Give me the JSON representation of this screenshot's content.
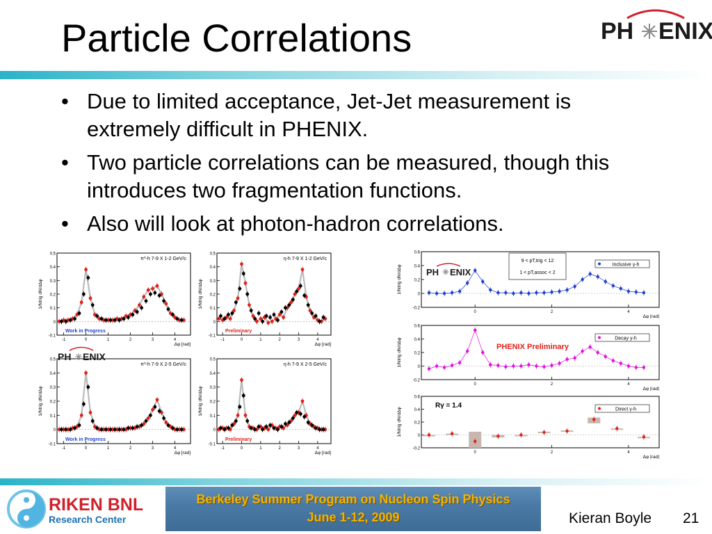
{
  "slide": {
    "title": "Particle Correlations",
    "bullets": [
      "Due to limited acceptance, Jet-Jet measurement is extremely difficult in PHENIX.",
      "Two particle correlations can be measured, though this introduces two fragmentation functions.",
      "Also will look at photon-hadron correlations."
    ],
    "bullet_symbol": "•"
  },
  "logos": {
    "phenix": "PH ENIX",
    "riken_line1": "RIKEN BNL",
    "riken_line2": "Research Center"
  },
  "footer": {
    "banner_line1": "Berkeley Summer Program on Nucleon Spin Physics",
    "banner_line2": "June 1-12, 2009",
    "author": "Kieran Boyle",
    "page": "21"
  },
  "colors": {
    "rule": "#2ab3c8",
    "phenix_red": "#d0202a",
    "banner_text": "#f1b400"
  },
  "chart_data": [
    {
      "type": "scatter",
      "panel": "pi0-h 7-9 X 1-2",
      "legend": "π⁰-h 7-9 X 1-2 GeV/c",
      "ylabel": "1/Ntrig dN/dΔφ",
      "xlabel": "Δφ [rad]",
      "xlim": [
        -1.3,
        4.7
      ],
      "ylim": [
        -0.1,
        0.5
      ],
      "xticks": [
        "-1",
        "0",
        "1",
        "2",
        "3",
        "4"
      ],
      "yticks": [
        "-0.1",
        "0",
        "0.1",
        "0.2",
        "0.3",
        "0.4",
        "0.5"
      ],
      "tag": "Work in Progress",
      "tag_color": "#1d3fd0",
      "series": [
        {
          "color": "#e0201a",
          "x": [
            -1.2,
            -1.0,
            -0.8,
            -0.6,
            -0.4,
            -0.2,
            0,
            0.2,
            0.4,
            0.6,
            0.8,
            1.0,
            1.2,
            1.4,
            1.6,
            1.8,
            2.0,
            2.2,
            2.4,
            2.6,
            2.8,
            3.0,
            3.2,
            3.4,
            3.6,
            3.8,
            4.0,
            4.2,
            4.4
          ],
          "y": [
            0.0,
            0.01,
            0.01,
            0.02,
            0.05,
            0.14,
            0.38,
            0.17,
            0.05,
            0.02,
            0.01,
            0.01,
            0.01,
            0.02,
            0.02,
            0.04,
            0.05,
            0.08,
            0.12,
            0.18,
            0.23,
            0.24,
            0.26,
            0.2,
            0.13,
            0.06,
            0.03,
            0.01,
            0.01
          ]
        },
        {
          "color": "#000000",
          "x": [
            -1.1,
            -0.9,
            -0.7,
            -0.5,
            -0.3,
            -0.1,
            0.1,
            0.3,
            0.5,
            0.7,
            0.9,
            1.1,
            1.3,
            1.5,
            1.7,
            1.9,
            2.1,
            2.3,
            2.5,
            2.7,
            2.9,
            3.1,
            3.3,
            3.5,
            3.7,
            3.9,
            4.1,
            4.3
          ],
          "y": [
            0.0,
            0.0,
            0.01,
            0.02,
            0.06,
            0.2,
            0.32,
            0.12,
            0.04,
            0.02,
            0.01,
            0.01,
            0.01,
            0.01,
            0.02,
            0.03,
            0.05,
            0.07,
            0.1,
            0.15,
            0.2,
            0.21,
            0.19,
            0.15,
            0.09,
            0.05,
            0.02,
            0.01
          ]
        }
      ]
    },
    {
      "type": "scatter",
      "panel": "eta-h 7-9 X 1-2",
      "legend": "η-h 7-9 X 1-2 GeV/c",
      "ylabel": "1/Ntrig dN/dΔφ",
      "xlabel": "Δφ [rad]",
      "xlim": [
        -1.3,
        4.7
      ],
      "ylim": [
        -0.1,
        0.5
      ],
      "xticks": [
        "-1",
        "0",
        "1",
        "2",
        "3",
        "4"
      ],
      "yticks": [
        "-0.1",
        "0",
        "0.1",
        "0.2",
        "0.3",
        "0.4",
        "0.5"
      ],
      "tag": "Preliminary",
      "tag_color": "#e0201a",
      "series": [
        {
          "color": "#e0201a",
          "x": [
            -1.2,
            -1.0,
            -0.8,
            -0.6,
            -0.4,
            -0.2,
            0,
            0.2,
            0.4,
            0.6,
            0.8,
            1.0,
            1.2,
            1.4,
            1.6,
            1.8,
            2.0,
            2.2,
            2.4,
            2.6,
            2.8,
            3.0,
            3.2,
            3.4,
            3.6,
            3.8,
            4.0,
            4.2,
            4.4
          ],
          "y": [
            0.02,
            0.01,
            0.03,
            0.02,
            0.08,
            0.17,
            0.42,
            0.28,
            0.12,
            0.04,
            0.0,
            0.02,
            0.03,
            -0.01,
            0.0,
            0.02,
            0.05,
            0.03,
            0.1,
            0.14,
            0.2,
            0.24,
            0.38,
            0.18,
            0.08,
            0.03,
            0.01,
            0.0,
            0.02
          ]
        },
        {
          "color": "#000000",
          "x": [
            -1.1,
            -0.9,
            -0.7,
            -0.5,
            -0.3,
            -0.1,
            0.1,
            0.3,
            0.5,
            0.7,
            0.9,
            1.1,
            1.3,
            1.5,
            1.7,
            1.9,
            2.1,
            2.3,
            2.5,
            2.7,
            2.9,
            3.1,
            3.3,
            3.5,
            3.7,
            3.9,
            4.1,
            4.3
          ],
          "y": [
            0.04,
            0.02,
            0.05,
            0.06,
            0.14,
            0.24,
            0.35,
            0.2,
            0.08,
            0.02,
            0.06,
            0.0,
            0.04,
            0.03,
            0.05,
            0.01,
            0.07,
            0.1,
            0.12,
            0.16,
            0.22,
            0.26,
            0.19,
            0.12,
            0.06,
            0.04,
            0.0,
            0.03
          ]
        }
      ]
    },
    {
      "type": "scatter",
      "panel": "pi0-h 7-9 X 2-5",
      "legend": "π⁰-h 7-9 X 2-5 GeV/c",
      "ylabel": "1/Ntrig dN/dΔφ",
      "xlabel": "Δφ [rad]",
      "xlim": [
        -1.3,
        4.7
      ],
      "ylim": [
        -0.1,
        0.5
      ],
      "xticks": [
        "-1",
        "0",
        "1",
        "2",
        "3",
        "4"
      ],
      "yticks": [
        "-0.1",
        "0",
        "0.1",
        "0.2",
        "0.3",
        "0.4",
        "0.5"
      ],
      "tag": "Work in Progress",
      "tag_color": "#1d3fd0",
      "series": [
        {
          "color": "#e0201a",
          "x": [
            -1.2,
            -1.0,
            -0.8,
            -0.6,
            -0.4,
            -0.2,
            0,
            0.2,
            0.4,
            0.6,
            0.8,
            1.0,
            1.2,
            1.4,
            1.6,
            1.8,
            2.0,
            2.2,
            2.4,
            2.6,
            2.8,
            3.0,
            3.2,
            3.4,
            3.6,
            3.8,
            4.0,
            4.2,
            4.4
          ],
          "y": [
            0.0,
            0.0,
            0.0,
            0.01,
            0.02,
            0.1,
            0.4,
            0.12,
            0.02,
            0.0,
            0.0,
            0.0,
            0.0,
            0.0,
            0.0,
            0.0,
            0.01,
            0.01,
            0.02,
            0.04,
            0.08,
            0.14,
            0.21,
            0.12,
            0.05,
            0.02,
            0.0,
            0.0,
            0.0
          ]
        },
        {
          "color": "#000000",
          "x": [
            -1.1,
            -0.9,
            -0.7,
            -0.5,
            -0.3,
            -0.1,
            0.1,
            0.3,
            0.5,
            0.7,
            0.9,
            1.1,
            1.3,
            1.5,
            1.7,
            1.9,
            2.1,
            2.3,
            2.5,
            2.7,
            2.9,
            3.1,
            3.3,
            3.5,
            3.7,
            3.9,
            4.1,
            4.3
          ],
          "y": [
            0.0,
            0.0,
            0.0,
            0.01,
            0.03,
            0.18,
            0.3,
            0.06,
            0.01,
            0.0,
            0.0,
            0.0,
            0.0,
            0.0,
            0.0,
            0.01,
            0.01,
            0.02,
            0.03,
            0.06,
            0.1,
            0.16,
            0.13,
            0.08,
            0.03,
            0.01,
            0.0,
            0.0
          ]
        }
      ]
    },
    {
      "type": "scatter",
      "panel": "eta-h 7-9 X 2-5",
      "legend": "η-h 7-9 X 2-5 GeV/c",
      "ylabel": "1/Ntrig dN/dΔφ",
      "xlabel": "Δφ [rad]",
      "xlim": [
        -1.3,
        4.7
      ],
      "ylim": [
        -0.1,
        0.5
      ],
      "xticks": [
        "-1",
        "0",
        "1",
        "2",
        "3",
        "4"
      ],
      "yticks": [
        "-0.1",
        "0",
        "0.1",
        "0.2",
        "0.3",
        "0.4",
        "0.5"
      ],
      "tag": "Preliminary",
      "tag_color": "#e0201a",
      "series": [
        {
          "color": "#e0201a",
          "x": [
            -1.2,
            -1.0,
            -0.8,
            -0.6,
            -0.4,
            -0.2,
            0,
            0.2,
            0.4,
            0.6,
            0.8,
            1.0,
            1.2,
            1.4,
            1.6,
            1.8,
            2.0,
            2.2,
            2.4,
            2.6,
            2.8,
            3.0,
            3.2,
            3.4,
            3.6,
            3.8,
            4.0,
            4.2,
            4.4
          ],
          "y": [
            0.0,
            0.01,
            0.01,
            0.0,
            0.04,
            0.1,
            0.35,
            0.1,
            0.02,
            0.01,
            0.0,
            0.02,
            0.01,
            0.0,
            0.03,
            0.01,
            0.02,
            0.01,
            0.03,
            0.06,
            0.1,
            0.12,
            0.2,
            0.1,
            0.04,
            0.02,
            0.01,
            0.0,
            0.0
          ]
        },
        {
          "color": "#000000",
          "x": [
            -1.1,
            -0.9,
            -0.7,
            -0.5,
            -0.3,
            -0.1,
            0.1,
            0.3,
            0.5,
            0.7,
            0.9,
            1.1,
            1.3,
            1.5,
            1.7,
            1.9,
            2.1,
            2.3,
            2.5,
            2.7,
            2.9,
            3.1,
            3.3,
            3.5,
            3.7,
            3.9,
            4.1,
            4.3
          ],
          "y": [
            0.01,
            0.0,
            0.01,
            0.03,
            0.06,
            0.16,
            0.24,
            0.06,
            0.01,
            0.0,
            0.02,
            0.0,
            0.02,
            0.03,
            0.01,
            0.0,
            0.02,
            0.04,
            0.05,
            0.08,
            0.12,
            0.11,
            0.09,
            0.05,
            0.03,
            0.01,
            0.0,
            0.0
          ]
        }
      ]
    },
    {
      "type": "scatter",
      "panel": "Inclusive gamma-h",
      "legend": "Inclusive γ-h",
      "note": [
        "9 < pT,trig < 12",
        "1 < pT,assoc < 2"
      ],
      "ylabel": "1/Ntrig dN/dΔφ",
      "xlabel": "Δφ [rad]",
      "xlim": [
        -1.4,
        4.8
      ],
      "ylim": [
        -0.2,
        0.6
      ],
      "xticks": [
        "0",
        "2",
        "4"
      ],
      "yticks": [
        "-0.2",
        "0",
        "0.2",
        "0.4",
        "0.6"
      ],
      "series": [
        {
          "color": "#1d3fd0",
          "x": [
            -1.2,
            -1.0,
            -0.8,
            -0.6,
            -0.4,
            -0.2,
            0.0,
            0.2,
            0.4,
            0.6,
            0.8,
            1.0,
            1.2,
            1.4,
            1.6,
            1.8,
            2.0,
            2.2,
            2.4,
            2.6,
            2.8,
            3.0,
            3.2,
            3.4,
            3.6,
            3.8,
            4.0,
            4.2,
            4.4
          ],
          "y": [
            0.01,
            0.0,
            0.0,
            0.01,
            0.03,
            0.15,
            0.33,
            0.17,
            0.05,
            0.01,
            0.01,
            0.0,
            0.01,
            0.0,
            0.01,
            0.01,
            0.02,
            0.03,
            0.05,
            0.1,
            0.2,
            0.28,
            0.24,
            0.17,
            0.11,
            0.07,
            0.03,
            0.02,
            0.01
          ]
        }
      ]
    },
    {
      "type": "scatter",
      "panel": "Decay gamma-h",
      "legend": "Decay γ-h",
      "tag": "PHENIX Preliminary",
      "tag_color": "#e0201a",
      "ylabel": "1/Ntrig dN/dΔφ",
      "xlabel": "Δφ [rad]",
      "xlim": [
        -1.4,
        4.8
      ],
      "ylim": [
        -0.2,
        0.6
      ],
      "xticks": [
        "0",
        "2",
        "4"
      ],
      "yticks": [
        "-0.2",
        "0",
        "0.2",
        "0.4",
        "0.6"
      ],
      "series": [
        {
          "color": "#e010e0",
          "x": [
            -1.2,
            -1.0,
            -0.8,
            -0.6,
            -0.4,
            -0.2,
            0.0,
            0.2,
            0.4,
            0.6,
            0.8,
            1.0,
            1.2,
            1.4,
            1.6,
            1.8,
            2.0,
            2.2,
            2.4,
            2.6,
            2.8,
            3.0,
            3.2,
            3.4,
            3.6,
            3.8,
            4.0,
            4.2,
            4.4
          ],
          "y": [
            -0.04,
            0.0,
            -0.02,
            0.01,
            0.05,
            0.22,
            0.53,
            0.2,
            0.02,
            0.01,
            -0.01,
            0.0,
            0.0,
            0.02,
            0.0,
            -0.01,
            0.01,
            0.04,
            0.1,
            0.12,
            0.22,
            0.28,
            0.2,
            0.14,
            0.08,
            0.04,
            0.0,
            -0.02,
            -0.02
          ]
        }
      ]
    },
    {
      "type": "scatter",
      "panel": "Direct gamma-h",
      "legend": "Direct γ-h",
      "note": [
        "Rγ = 1.4"
      ],
      "ylabel": "1/Ntrig dN/dΔφ",
      "xlabel": "Δφ [rad]",
      "xlim": [
        -1.4,
        4.8
      ],
      "ylim": [
        -0.2,
        0.6
      ],
      "xticks": [
        "0",
        "2",
        "4"
      ],
      "yticks": [
        "-0.2",
        "0",
        "0.2",
        "0.4",
        "0.6"
      ],
      "series": [
        {
          "color": "#e0201a",
          "x": [
            -1.2,
            -0.6,
            0.0,
            0.6,
            1.2,
            1.8,
            2.4,
            3.1,
            3.7,
            4.4
          ],
          "y": [
            0.0,
            0.02,
            -0.1,
            -0.02,
            0.0,
            0.04,
            0.06,
            0.24,
            0.1,
            -0.03
          ],
          "box_lo": [
            0.0,
            0.02,
            -0.2,
            -0.04,
            0.0,
            0.03,
            0.05,
            0.18,
            0.1,
            -0.03
          ],
          "box_hi": [
            0.0,
            0.02,
            0.05,
            0.0,
            0.0,
            0.05,
            0.07,
            0.27,
            0.1,
            -0.03
          ]
        }
      ]
    }
  ]
}
